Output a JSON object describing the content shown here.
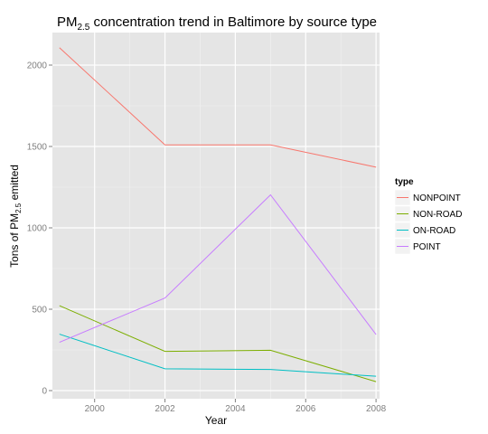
{
  "chart_data": {
    "type": "line",
    "title_main": "PM",
    "title_sub": "2.5",
    "title_rest": " concentration trend in Baltimore by source type",
    "xlabel": "Year",
    "ylabel_main": "Tons of PM",
    "ylabel_sub": "2.5",
    "ylabel_rest": " emitted",
    "x": [
      1999,
      2002,
      2005,
      2008
    ],
    "xlim": [
      1998.8,
      2008.1
    ],
    "ylim": [
      -50,
      2200
    ],
    "xticks": [
      2000,
      2002,
      2004,
      2006,
      2008
    ],
    "yticks": [
      0,
      500,
      1000,
      1500,
      2000
    ],
    "grid": true,
    "background": "#e5e5e5",
    "legend": {
      "title": "type",
      "position": "right"
    },
    "series": [
      {
        "name": "NONPOINT",
        "color": "#f8766d",
        "values": [
          2107,
          1510,
          1510,
          1373
        ]
      },
      {
        "name": "NON-ROAD",
        "color": "#7cae00",
        "values": [
          522,
          241,
          248,
          55
        ]
      },
      {
        "name": "ON-ROAD",
        "color": "#00bfc4",
        "values": [
          347,
          134,
          130,
          88
        ]
      },
      {
        "name": "POINT",
        "color": "#c77cff",
        "values": [
          297,
          569,
          1203,
          345
        ]
      }
    ]
  }
}
